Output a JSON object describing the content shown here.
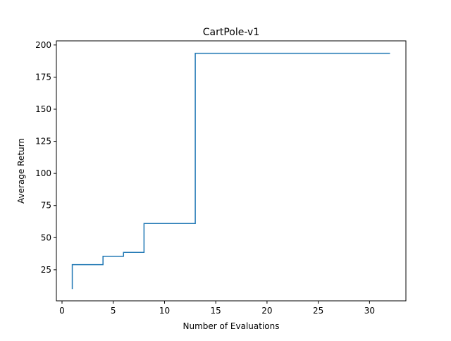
{
  "chart_data": {
    "type": "line",
    "step": "post",
    "title": "CartPole-v1",
    "xlabel": "Number of Evaluations",
    "ylabel": "Average Return",
    "xlim": [
      -0.55,
      33.55
    ],
    "ylim": [
      0.8,
      203.2
    ],
    "xticks": [
      0,
      5,
      10,
      15,
      20,
      25,
      30
    ],
    "yticks": [
      25,
      50,
      75,
      100,
      125,
      150,
      175,
      200
    ],
    "grid": false,
    "legend": "none",
    "series": [
      {
        "color": "#1f77b4",
        "x": [
          1,
          1,
          4,
          4,
          6,
          6,
          8,
          8,
          13,
          13,
          32
        ],
        "y": [
          10,
          29,
          29,
          35.5,
          35.5,
          38.5,
          38.5,
          61,
          61,
          193.5,
          193.5
        ]
      }
    ]
  }
}
